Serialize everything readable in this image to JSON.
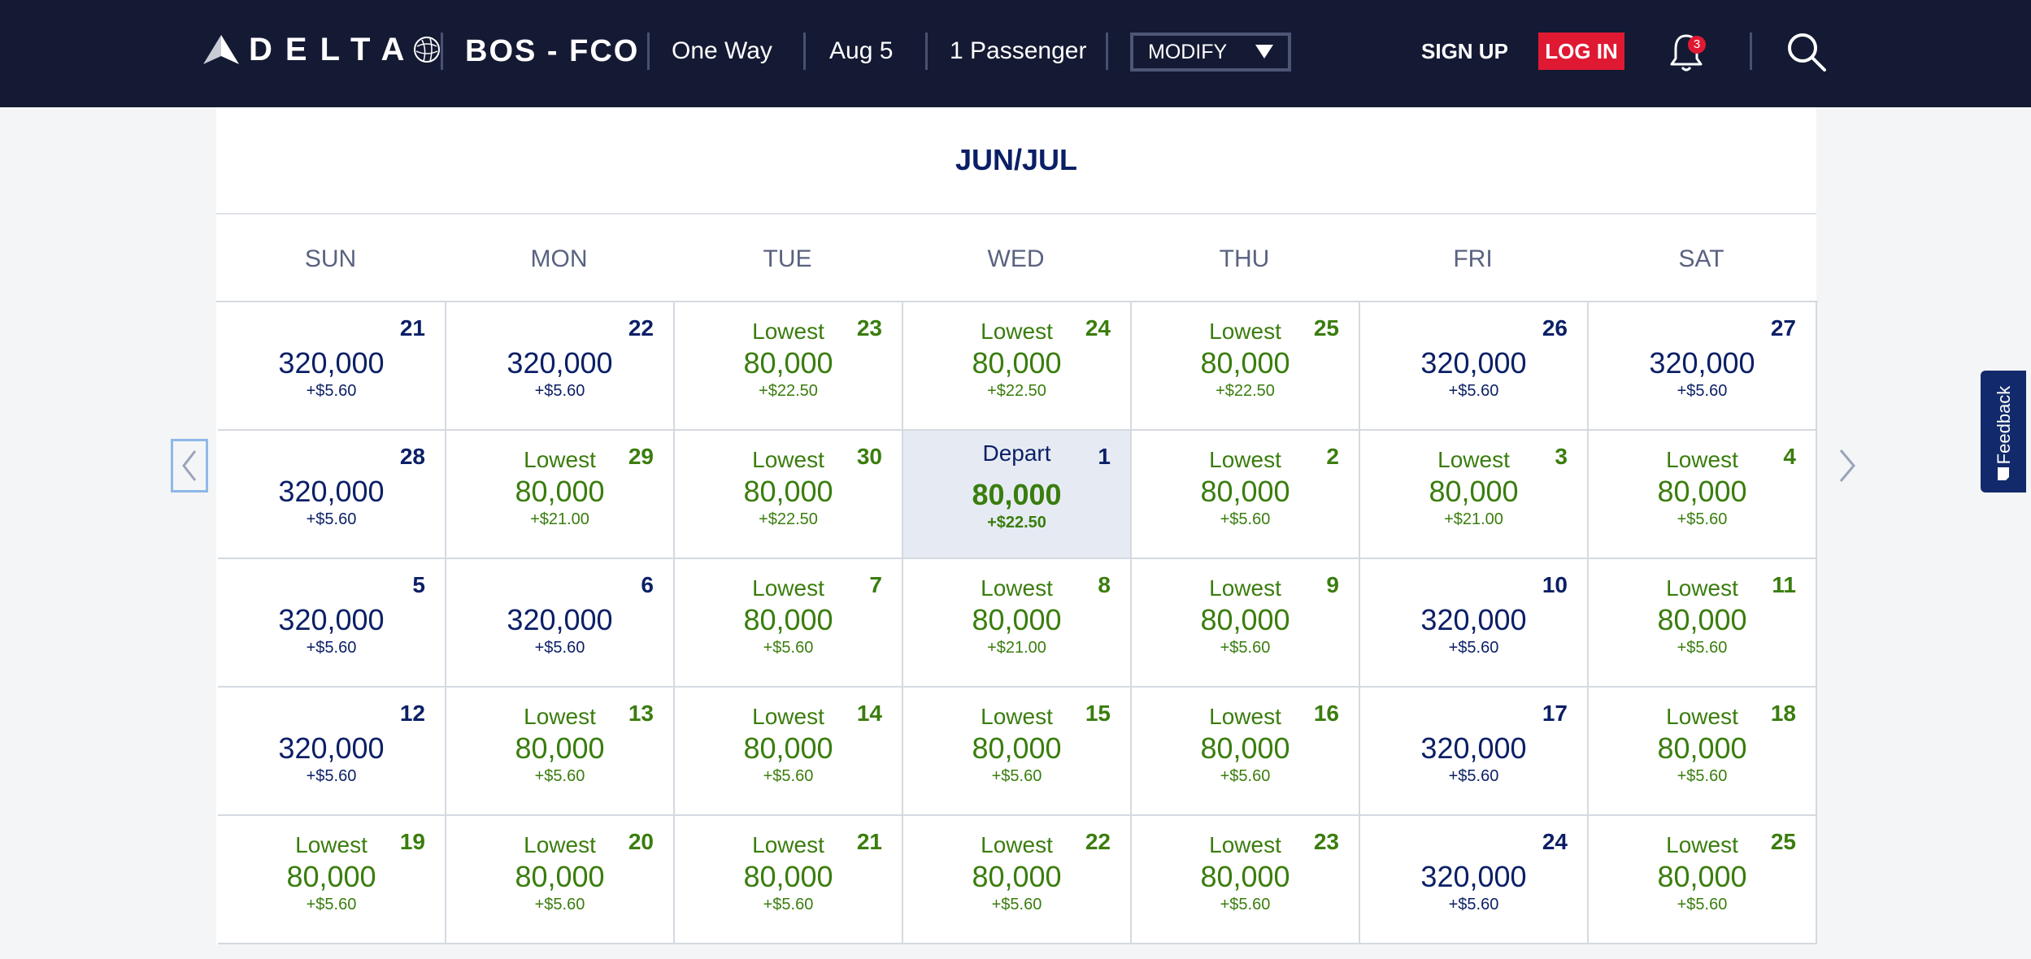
{
  "header": {
    "brand": "DELTA",
    "route": "BOS - FCO",
    "trip_type": "One Way",
    "date": "Aug 5",
    "passengers": "1 Passenger",
    "modify_label": "MODIFY",
    "signup_label": "SIGN UP",
    "login_label": "LOG IN",
    "notification_count": "3",
    "icons": [
      "delta-widget-icon",
      "skyteam-globe-icon",
      "bell-icon",
      "search-icon"
    ]
  },
  "calendar": {
    "month_label": "JUN/JUL",
    "weekdays": [
      "SUN",
      "MON",
      "TUE",
      "WED",
      "THU",
      "FRI",
      "SAT"
    ],
    "lowest_label": "Lowest",
    "depart_label": "Depart",
    "weeks": [
      [
        {
          "day": "21",
          "miles": "320,000",
          "fee": "+$5.60",
          "lowest": false
        },
        {
          "day": "22",
          "miles": "320,000",
          "fee": "+$5.60",
          "lowest": false
        },
        {
          "day": "23",
          "miles": "80,000",
          "fee": "+$22.50",
          "lowest": true
        },
        {
          "day": "24",
          "miles": "80,000",
          "fee": "+$22.50",
          "lowest": true
        },
        {
          "day": "25",
          "miles": "80,000",
          "fee": "+$22.50",
          "lowest": true
        },
        {
          "day": "26",
          "miles": "320,000",
          "fee": "+$5.60",
          "lowest": false
        },
        {
          "day": "27",
          "miles": "320,000",
          "fee": "+$5.60",
          "lowest": false
        }
      ],
      [
        {
          "day": "28",
          "miles": "320,000",
          "fee": "+$5.60",
          "lowest": false
        },
        {
          "day": "29",
          "miles": "80,000",
          "fee": "+$21.00",
          "lowest": true
        },
        {
          "day": "30",
          "miles": "80,000",
          "fee": "+$22.50",
          "lowest": true
        },
        {
          "day": "1",
          "miles": "80,000",
          "fee": "+$22.50",
          "lowest": false,
          "selected": true
        },
        {
          "day": "2",
          "miles": "80,000",
          "fee": "+$5.60",
          "lowest": true
        },
        {
          "day": "3",
          "miles": "80,000",
          "fee": "+$21.00",
          "lowest": true
        },
        {
          "day": "4",
          "miles": "80,000",
          "fee": "+$5.60",
          "lowest": true
        }
      ],
      [
        {
          "day": "5",
          "miles": "320,000",
          "fee": "+$5.60",
          "lowest": false
        },
        {
          "day": "6",
          "miles": "320,000",
          "fee": "+$5.60",
          "lowest": false
        },
        {
          "day": "7",
          "miles": "80,000",
          "fee": "+$5.60",
          "lowest": true
        },
        {
          "day": "8",
          "miles": "80,000",
          "fee": "+$21.00",
          "lowest": true
        },
        {
          "day": "9",
          "miles": "80,000",
          "fee": "+$5.60",
          "lowest": true
        },
        {
          "day": "10",
          "miles": "320,000",
          "fee": "+$5.60",
          "lowest": false
        },
        {
          "day": "11",
          "miles": "80,000",
          "fee": "+$5.60",
          "lowest": true
        }
      ],
      [
        {
          "day": "12",
          "miles": "320,000",
          "fee": "+$5.60",
          "lowest": false
        },
        {
          "day": "13",
          "miles": "80,000",
          "fee": "+$5.60",
          "lowest": true
        },
        {
          "day": "14",
          "miles": "80,000",
          "fee": "+$5.60",
          "lowest": true
        },
        {
          "day": "15",
          "miles": "80,000",
          "fee": "+$5.60",
          "lowest": true
        },
        {
          "day": "16",
          "miles": "80,000",
          "fee": "+$5.60",
          "lowest": true
        },
        {
          "day": "17",
          "miles": "320,000",
          "fee": "+$5.60",
          "lowest": false
        },
        {
          "day": "18",
          "miles": "80,000",
          "fee": "+$5.60",
          "lowest": true
        }
      ],
      [
        {
          "day": "19",
          "miles": "80,000",
          "fee": "+$5.60",
          "lowest": true
        },
        {
          "day": "20",
          "miles": "80,000",
          "fee": "+$5.60",
          "lowest": true
        },
        {
          "day": "21",
          "miles": "80,000",
          "fee": "+$5.60",
          "lowest": true
        },
        {
          "day": "22",
          "miles": "80,000",
          "fee": "+$5.60",
          "lowest": true
        },
        {
          "day": "23",
          "miles": "80,000",
          "fee": "+$5.60",
          "lowest": true
        },
        {
          "day": "24",
          "miles": "320,000",
          "fee": "+$5.60",
          "lowest": false
        },
        {
          "day": "25",
          "miles": "80,000",
          "fee": "+$5.60",
          "lowest": true
        }
      ]
    ]
  },
  "nav": {
    "prev_icon": "chevron-left-icon",
    "next_icon": "chevron-right-icon"
  },
  "feedback": {
    "label": "Feedback"
  },
  "colors": {
    "header_bg": "#141a33",
    "brand_navy": "#0b1f66",
    "lowest_green": "#3a7d0e",
    "login_red": "#e01933",
    "selected_bg": "#e6ebf3"
  }
}
